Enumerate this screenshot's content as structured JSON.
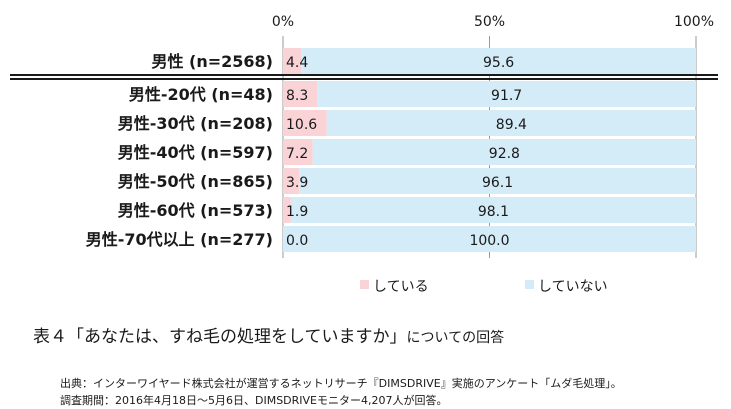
{
  "chart_data": {
    "type": "bar",
    "orientation": "horizontal",
    "stacked": true,
    "percent_stacked": true,
    "categories": [
      "男性 (n=2568)",
      "男性-20代 (n=48)",
      "男性-30代 (n=208)",
      "男性-40代 (n=597)",
      "男性-50代 (n=865)",
      "男性-60代 (n=573)",
      "男性-70代以上 (n=277)"
    ],
    "series": [
      {
        "name": "している",
        "values": [
          4.4,
          8.3,
          10.6,
          7.2,
          3.9,
          1.9,
          0.0
        ],
        "labels": [
          "4.4",
          "8.3",
          "10.6",
          "7.2",
          "3.9",
          "1.9",
          "0.0"
        ],
        "color": "#f9d3d6"
      },
      {
        "name": "していない",
        "values": [
          95.6,
          91.7,
          89.4,
          92.8,
          96.1,
          98.1,
          100.0
        ],
        "labels": [
          "95.6",
          "91.7",
          "89.4",
          "92.8",
          "96.1",
          "98.1",
          "100.0"
        ],
        "color": "#d4ebf8"
      }
    ],
    "xlim": [
      0,
      100
    ],
    "x_ticks": [
      "0%",
      "50%",
      "100%"
    ],
    "gridlines": true,
    "legend_position": "bottom",
    "separator_after_first_row": true
  },
  "caption": {
    "main": "表４「あなたは、すね毛の処理をしていますか」",
    "tail": "についての回答"
  },
  "source": {
    "line1": "出典：インターワイヤード株式会社が運営するネットリサーチ『DIMSDRIVE』実施のアンケート「ムダ毛処理」。",
    "line2": "調査期間：2016年4月18日～5月6日、DIMSDRIVEモニター4,207人が回答。"
  }
}
